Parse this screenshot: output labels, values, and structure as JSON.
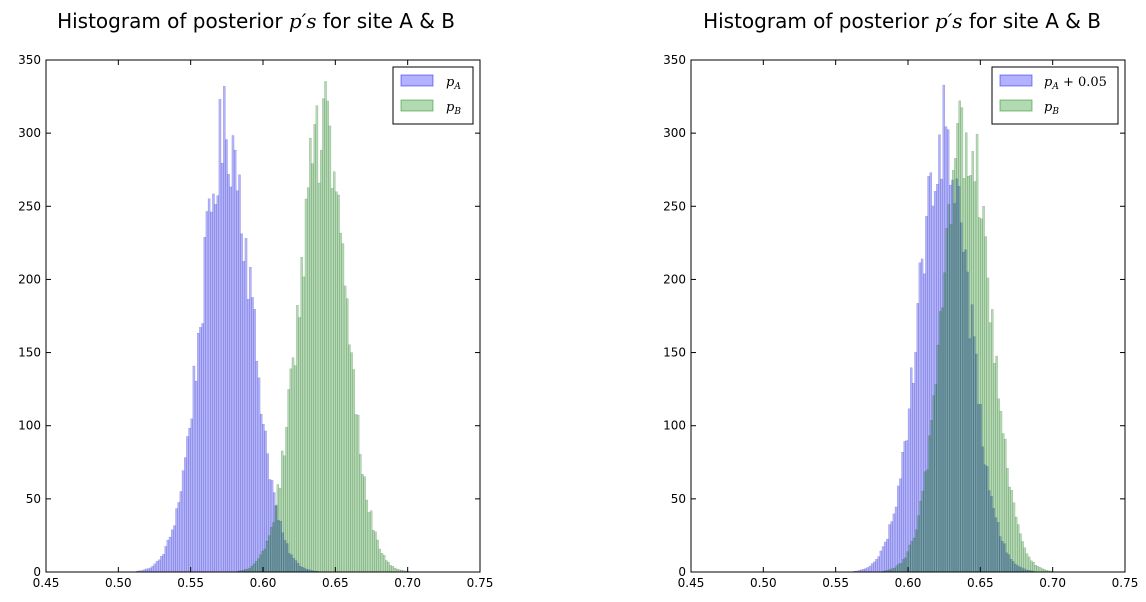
{
  "chart_data": [
    {
      "type": "histogram",
      "title_prefix": "Histogram of posterior ",
      "title_math": "p′s",
      "title_suffix": " for site A & B",
      "xlim": [
        0.45,
        0.75
      ],
      "ylim": [
        0,
        350
      ],
      "xticks": [
        "0.45",
        "0.50",
        "0.55",
        "0.60",
        "0.65",
        "0.70",
        "0.75"
      ],
      "yticks": [
        "0",
        "50",
        "100",
        "150",
        "200",
        "250",
        "300",
        "350"
      ],
      "legend_position": "top-right",
      "bin_width": 0.0015,
      "series": [
        {
          "name": "p_A",
          "label": "pA",
          "color": "#0000ff",
          "alpha": 0.3,
          "center": 0.575,
          "sigma": 0.0175,
          "peak": 300,
          "start": 0.49,
          "end": 0.66
        },
        {
          "name": "p_B",
          "label": "pB",
          "color": "#008000",
          "alpha": 0.3,
          "center": 0.641,
          "sigma": 0.0165,
          "peak": 305,
          "start": 0.56,
          "end": 0.72
        }
      ]
    },
    {
      "type": "histogram",
      "title_prefix": "Histogram of posterior ",
      "title_math": "p′s",
      "title_suffix": " for site A & B",
      "xlim": [
        0.45,
        0.75
      ],
      "ylim": [
        0,
        350
      ],
      "xticks": [
        "0.45",
        "0.50",
        "0.55",
        "0.60",
        "0.65",
        "0.70",
        "0.75"
      ],
      "yticks": [
        "0",
        "50",
        "100",
        "150",
        "200",
        "250",
        "300",
        "350"
      ],
      "legend_position": "top-right",
      "bin_width": 0.0015,
      "series": [
        {
          "name": "p_A + 0.05",
          "label": "pA + 0.05",
          "color": "#0000ff",
          "alpha": 0.3,
          "center": 0.625,
          "sigma": 0.0175,
          "peak": 300,
          "start": 0.54,
          "end": 0.71
        },
        {
          "name": "p_B",
          "label": "pB",
          "color": "#008000",
          "alpha": 0.3,
          "center": 0.641,
          "sigma": 0.0165,
          "peak": 305,
          "start": 0.56,
          "end": 0.72
        }
      ]
    }
  ]
}
